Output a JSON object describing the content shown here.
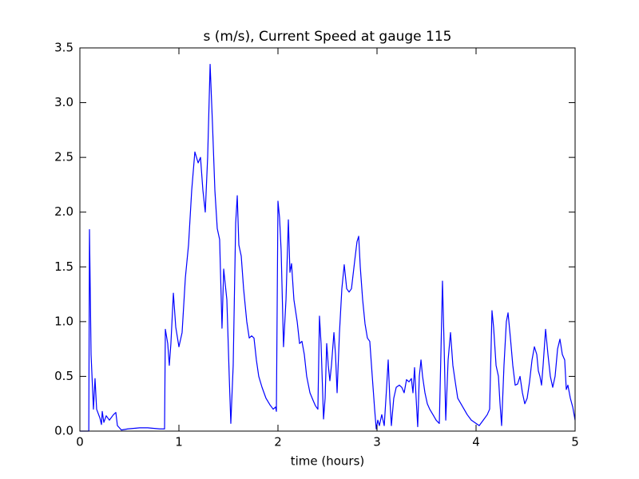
{
  "chart_data": {
    "type": "line",
    "title": "s (m/s), Current Speed at gauge 115",
    "x_label": "time (hours)",
    "xlim": [
      0,
      5
    ],
    "ylim": [
      0,
      3.5
    ],
    "xticks": [
      0,
      1,
      2,
      3,
      4,
      5
    ],
    "yticks": [
      {
        "value": 0,
        "label": "0.0"
      },
      0.5,
      {
        "value": 1,
        "label": "1.0"
      },
      1.5,
      {
        "value": 2,
        "label": "2.0"
      },
      2.5,
      {
        "value": 3,
        "label": "3.0"
      },
      3.5
    ],
    "grid": false,
    "hline": {
      "value": 0,
      "color": "#000000",
      "dashed": true
    },
    "series": [
      {
        "color": "#0000ff",
        "x": [
          0,
          0.09,
          0.097,
          0.113,
          0.137,
          0.153,
          0.169,
          0.202,
          0.218,
          0.226,
          0.242,
          0.266,
          0.298,
          0.339,
          0.363,
          0.379,
          0.419,
          0.484,
          0.605,
          0.685,
          0.806,
          0.855,
          0.863,
          0.887,
          0.903,
          0.919,
          0.944,
          0.968,
          1.0,
          1.032,
          1.065,
          1.097,
          1.129,
          1.161,
          1.194,
          1.218,
          1.242,
          1.266,
          1.29,
          1.315,
          1.339,
          1.363,
          1.387,
          1.411,
          1.435,
          1.452,
          1.484,
          1.508,
          1.524,
          1.548,
          1.573,
          1.589,
          1.605,
          1.629,
          1.653,
          1.685,
          1.71,
          1.734,
          1.758,
          1.782,
          1.806,
          1.839,
          1.879,
          1.919,
          1.952,
          1.976,
          1.984,
          2.0,
          2.016,
          2.032,
          2.056,
          2.081,
          2.105,
          2.121,
          2.137,
          2.161,
          2.194,
          2.218,
          2.242,
          2.266,
          2.29,
          2.323,
          2.355,
          2.379,
          2.403,
          2.419,
          2.435,
          2.46,
          2.476,
          2.492,
          2.508,
          2.524,
          2.54,
          2.565,
          2.581,
          2.597,
          2.621,
          2.645,
          2.669,
          2.694,
          2.718,
          2.742,
          2.774,
          2.798,
          2.815,
          2.831,
          2.855,
          2.879,
          2.903,
          2.927,
          2.952,
          2.976,
          2.992,
          3.008,
          3.024,
          3.048,
          3.073,
          3.097,
          3.113,
          3.129,
          3.145,
          3.169,
          3.194,
          3.226,
          3.25,
          3.274,
          3.298,
          3.323,
          3.347,
          3.363,
          3.379,
          3.395,
          3.411,
          3.427,
          3.444,
          3.46,
          3.484,
          3.508,
          3.532,
          3.565,
          3.597,
          3.629,
          3.645,
          3.661,
          3.677,
          3.694,
          3.718,
          3.742,
          3.766,
          3.79,
          3.815,
          3.847,
          3.879,
          3.911,
          3.952,
          4.0,
          4.032,
          4.073,
          4.113,
          4.137,
          4.161,
          4.177,
          4.202,
          4.226,
          4.242,
          4.258,
          4.282,
          4.306,
          4.323,
          4.347,
          4.371,
          4.395,
          4.419,
          4.444,
          4.468,
          4.492,
          4.516,
          4.54,
          4.565,
          4.589,
          4.613,
          4.629,
          4.645,
          4.661,
          4.677,
          4.702,
          4.726,
          4.75,
          4.774,
          4.798,
          4.823,
          4.847,
          4.871,
          4.895,
          4.911,
          4.927,
          4.952,
          4.976,
          5.0
        ],
        "values": [
          0,
          0,
          1.84,
          0.7,
          0.2,
          0.48,
          0.2,
          0.12,
          0.06,
          0.18,
          0.08,
          0.14,
          0.1,
          0.15,
          0.17,
          0.05,
          0.01,
          0.02,
          0.03,
          0.03,
          0.02,
          0.02,
          0.93,
          0.8,
          0.6,
          0.8,
          1.26,
          0.95,
          0.77,
          0.9,
          1.4,
          1.7,
          2.2,
          2.55,
          2.45,
          2.5,
          2.2,
          2.0,
          2.5,
          3.35,
          2.8,
          2.2,
          1.85,
          1.75,
          0.94,
          1.48,
          1.2,
          0.5,
          0.07,
          0.6,
          1.9,
          2.15,
          1.7,
          1.6,
          1.3,
          1.0,
          0.85,
          0.87,
          0.85,
          0.65,
          0.5,
          0.4,
          0.3,
          0.24,
          0.2,
          0.22,
          0.18,
          2.1,
          1.95,
          1.65,
          0.77,
          1.2,
          1.93,
          1.45,
          1.53,
          1.2,
          1.0,
          0.8,
          0.82,
          0.7,
          0.5,
          0.35,
          0.28,
          0.23,
          0.2,
          1.05,
          0.8,
          0.11,
          0.3,
          0.8,
          0.6,
          0.46,
          0.6,
          0.9,
          0.7,
          0.35,
          0.9,
          1.3,
          1.52,
          1.3,
          1.27,
          1.3,
          1.55,
          1.73,
          1.78,
          1.5,
          1.2,
          0.98,
          0.85,
          0.82,
          0.5,
          0.2,
          0.02,
          0.1,
          0.05,
          0.15,
          0.05,
          0.4,
          0.65,
          0.3,
          0.05,
          0.3,
          0.4,
          0.42,
          0.4,
          0.35,
          0.47,
          0.45,
          0.48,
          0.35,
          0.58,
          0.3,
          0.04,
          0.5,
          0.65,
          0.5,
          0.35,
          0.25,
          0.2,
          0.15,
          0.1,
          0.07,
          0.7,
          1.37,
          0.8,
          0.1,
          0.65,
          0.9,
          0.6,
          0.45,
          0.3,
          0.25,
          0.2,
          0.15,
          0.1,
          0.07,
          0.05,
          0.1,
          0.15,
          0.2,
          1.1,
          0.95,
          0.6,
          0.5,
          0.25,
          0.05,
          0.6,
          1.0,
          1.08,
          0.85,
          0.6,
          0.42,
          0.43,
          0.5,
          0.35,
          0.25,
          0.3,
          0.45,
          0.65,
          0.77,
          0.7,
          0.55,
          0.5,
          0.42,
          0.6,
          0.93,
          0.7,
          0.5,
          0.4,
          0.5,
          0.75,
          0.84,
          0.7,
          0.65,
          0.38,
          0.42,
          0.3,
          0.22,
          0.1
        ]
      }
    ]
  }
}
